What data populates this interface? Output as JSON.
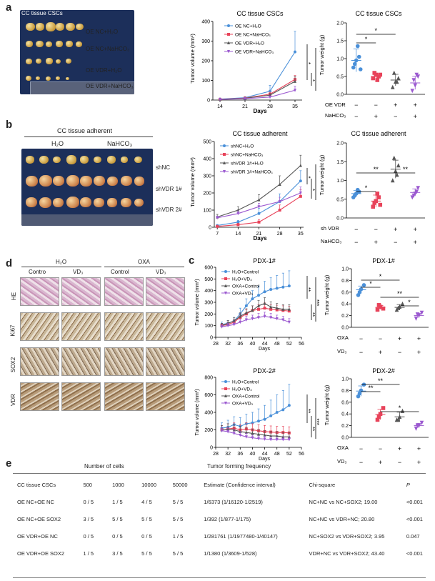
{
  "panel_a": {
    "letter": "a",
    "photo_title": "CC tissue CSCs",
    "groups": [
      "OE NC+H₂O",
      "OE NC+NaHCO₃",
      "OE VDR+H₂O",
      "OE VDR+NaHCO₃"
    ],
    "volume_title": "CC tissue CSCs",
    "volume_ylabel": "Tumor volume (mm³)",
    "volume_xlabel": "Days",
    "volume_yticks": [
      "0",
      "100",
      "200",
      "300",
      "400"
    ],
    "volume_xticks": [
      "14",
      "21",
      "28",
      "35"
    ],
    "weight_title": "CC tissue CSCs",
    "weight_ylabel": "Tumor weight (g)",
    "weight_yticks": [
      "0.0",
      "0.5",
      "1.0",
      "1.5",
      "2.0"
    ],
    "row1_label": "OE VDR",
    "row1_signs": [
      "−",
      "−",
      "+",
      "+"
    ],
    "row2_label": "NaHCO₃",
    "row2_signs": [
      "−",
      "+",
      "−",
      "+"
    ],
    "stars": [
      "*",
      "*",
      "*",
      "*",
      "*",
      "*",
      "*"
    ]
  },
  "panel_b": {
    "letter": "b",
    "photo_title": "CC tissue adherent",
    "col1": "H₂O",
    "col2": "NaHCO₃",
    "rows": [
      "shNC",
      "shVDR 1#",
      "shVDR 2#"
    ],
    "groups": [
      "shNC+H₂O",
      "shNC+NaHCO₃",
      "shVDR 1#+H₂O",
      "shVDR 1#+NaHCO₃"
    ],
    "volume_title": "CC tissue adherent",
    "volume_ylabel": "Tumor volume (mm³)",
    "volume_xlabel": "Days",
    "volume_yticks": [
      "0",
      "100",
      "200",
      "300",
      "400",
      "500"
    ],
    "volume_xticks": [
      "7",
      "14",
      "21",
      "28",
      "35"
    ],
    "weight_title": "CC tissue adherent",
    "weight_ylabel": "Tumor weight (g)",
    "weight_yticks": [
      "0.0",
      "0.5",
      "1.0",
      "1.5",
      "2.0"
    ],
    "row1_label": "sh VDR",
    "row1_signs": [
      "−",
      "−",
      "+",
      "+"
    ],
    "row2_label": "NaHCO₃",
    "row2_signs": [
      "−",
      "+",
      "−",
      "+"
    ],
    "stars": [
      "*",
      "**",
      "**",
      "*",
      "*",
      "***"
    ]
  },
  "panel_d": {
    "letter": "d",
    "group1": "H₂O",
    "group2": "OXA",
    "cols": [
      "Contro",
      "VD₃",
      "Control",
      "VD₃"
    ],
    "rows": [
      "HE",
      "Ki67",
      "SOX2",
      "VDR"
    ]
  },
  "panel_c": {
    "letter": "c",
    "pdx1_title": "PDX-1#",
    "pdx2_title": "PDX-2#",
    "groups": [
      "H₂O+Control",
      "H₂O+VD₃",
      "OXA+Control",
      "OXA+VD₃"
    ],
    "volume_ylabel": "Tumor volume (mm³)",
    "volume_xlabel": "Days",
    "pdx1_yticks": [
      "0",
      "100",
      "200",
      "300",
      "400",
      "500",
      "600"
    ],
    "pdx2_yticks": [
      "0",
      "200",
      "400",
      "600",
      "800"
    ],
    "xticks": [
      "28",
      "32",
      "36",
      "40",
      "44",
      "48",
      "52",
      "56"
    ],
    "weight_ylabel": "Tumor weight (g)",
    "pdx1_wyticks": [
      "0.0",
      "0.2",
      "0.4",
      "0.6",
      "0.8",
      "1.0"
    ],
    "pdx2_wyticks": [
      "0.0",
      "0.2",
      "0.4",
      "0.6",
      "0.8",
      "1.0"
    ],
    "row1_label": "OXA",
    "row1_signs": [
      "−",
      "−",
      "+",
      "+"
    ],
    "row2_label": "VD₃",
    "row2_signs": [
      "−",
      "+",
      "−",
      "+"
    ],
    "pdx1_stars": [
      "*",
      "*",
      "**",
      "*"
    ],
    "pdx2_stars": [
      "**",
      "**",
      "*"
    ],
    "vol_stars": [
      "**",
      "**",
      "***",
      "**",
      "**",
      "***"
    ]
  },
  "panel_e": {
    "letter": "e",
    "header1": "Number of cells",
    "header2": "Tumor forming frequency",
    "columns": [
      "CC tissue CSCs",
      "500",
      "1000",
      "10000",
      "50000",
      "Estimate (Confidence interval)",
      "Chi-square",
      "P"
    ],
    "rows": [
      [
        "OE NC+OE NC",
        "0 / 5",
        "1 / 5",
        "4 / 5",
        "5 / 5",
        "1/6373 (1/16120-1/2519)",
        "NC+NC vs NC+SOX2; 19.00",
        "<0.001"
      ],
      [
        "OE NC+OE SOX2",
        "3 / 5",
        "5 / 5",
        "5 / 5",
        "5 / 5",
        "1/392 (1/877-1/175)",
        "NC+NC vs VDR+NC; 20.80",
        "<0.001"
      ],
      [
        "OE VDR+OE NC",
        "0 / 5",
        "0 / 5",
        "0 / 5",
        "1 / 5",
        "1/281761 (1/1977480-1/40147)",
        "NC+SOX2 vs VDR+SOX2; 3.95",
        "0.047"
      ],
      [
        "OE VDR+OE SOX2",
        "1 / 5",
        "3 / 5",
        "5 / 5",
        "5 / 5",
        "1/1380 (1/3609-1/528)",
        "VDR+NC vs VDR+SOX2; 43.40",
        "<0.001"
      ]
    ]
  },
  "colors": {
    "blue": "#4a90d9",
    "red": "#e8435a",
    "gray": "#555555",
    "purple": "#9b59d0"
  },
  "chart_data": [
    {
      "type": "line",
      "title": "CC tissue CSCs",
      "xlabel": "Days",
      "ylabel": "Tumor volume (mm³)",
      "x": [
        14,
        21,
        28,
        35
      ],
      "ylim": [
        0,
        400
      ],
      "series": [
        {
          "name": "OE NC+H₂O",
          "values": [
            5,
            12,
            45,
            245
          ],
          "err": [
            0,
            0,
            30,
            105
          ]
        },
        {
          "name": "OE NC+NaHCO₃",
          "values": [
            4,
            10,
            30,
            105
          ],
          "err": [
            0,
            0,
            10,
            20
          ]
        },
        {
          "name": "OE VDR+H₂O",
          "values": [
            4,
            9,
            25,
            95
          ],
          "err": [
            0,
            0,
            8,
            25
          ]
        },
        {
          "name": "OE VDR+NaHCO₃",
          "values": [
            3,
            7,
            15,
            50
          ],
          "err": [
            0,
            0,
            5,
            20
          ]
        }
      ]
    },
    {
      "type": "scatter",
      "title": "CC tissue CSCs",
      "ylabel": "Tumor weight (g)",
      "ylim": [
        0,
        2.0
      ],
      "categories": [
        "1",
        "2",
        "3",
        "4"
      ],
      "points": [
        [
          0.75,
          0.95,
          1.05,
          0.85,
          1.35,
          0.7
        ],
        [
          0.45,
          0.55,
          0.5,
          0.6,
          0.4,
          0.55
        ],
        [
          0.2,
          0.35,
          0.45,
          0.6,
          0.35
        ],
        [
          0.1,
          0.25,
          0.5,
          0.4,
          0.55
        ]
      ],
      "means": [
        0.95,
        0.5,
        0.4,
        0.32
      ]
    },
    {
      "type": "line",
      "title": "CC tissue adherent",
      "xlabel": "Days",
      "ylabel": "Tumor volume (mm³)",
      "x": [
        7,
        14,
        21,
        28,
        35
      ],
      "ylim": [
        0,
        500
      ],
      "series": [
        {
          "name": "shNC+H₂O",
          "values": [
            10,
            30,
            80,
            150,
            270
          ],
          "err": [
            5,
            10,
            30,
            45,
            60
          ]
        },
        {
          "name": "shNC+NaHCO₃",
          "values": [
            5,
            15,
            30,
            100,
            180
          ],
          "err": [
            5,
            8,
            15,
            30,
            40
          ]
        },
        {
          "name": "shVDR 1#+H₂O",
          "values": [
            60,
            100,
            160,
            250,
            360
          ],
          "err": [
            15,
            20,
            30,
            50,
            60
          ]
        },
        {
          "name": "shVDR 1#+NaHCO₃",
          "values": [
            55,
            80,
            120,
            150,
            200
          ],
          "err": [
            10,
            15,
            20,
            25,
            35
          ]
        }
      ]
    },
    {
      "type": "scatter",
      "title": "CC tissue adherent",
      "ylabel": "Tumor weight (g)",
      "ylim": [
        0,
        2.0
      ],
      "categories": [
        "1",
        "2",
        "3",
        "4"
      ],
      "points": [
        [
          0.55,
          0.65,
          0.7,
          0.6,
          0.75
        ],
        [
          0.3,
          0.45,
          0.55,
          0.4,
          0.65,
          0.35
        ],
        [
          1.0,
          1.25,
          1.4,
          1.6,
          1.15
        ],
        [
          0.55,
          0.65,
          0.8,
          0.6,
          0.7
        ]
      ],
      "means": [
        0.65,
        0.45,
        1.3,
        0.68
      ]
    },
    {
      "type": "line",
      "title": "PDX-1#",
      "xlabel": "Days",
      "ylabel": "Tumor volume (mm³)",
      "x": [
        30,
        32,
        34,
        36,
        38,
        40,
        42,
        44,
        46,
        48,
        50,
        52
      ],
      "ylim": [
        0,
        600
      ],
      "series": [
        {
          "name": "H₂O+Control",
          "values": [
            110,
            120,
            140,
            200,
            270,
            330,
            360,
            390,
            410,
            420,
            430,
            440
          ],
          "err": [
            20,
            25,
            30,
            50,
            60,
            70,
            80,
            90,
            100,
            110,
            120,
            130
          ]
        },
        {
          "name": "H₂O+VD₃",
          "values": [
            100,
            110,
            130,
            170,
            200,
            230,
            240,
            250,
            240,
            235,
            230,
            225
          ],
          "err": [
            15,
            20,
            25,
            30,
            35,
            40,
            40,
            45,
            40,
            40,
            40,
            40
          ]
        },
        {
          "name": "OXA+Control",
          "values": [
            100,
            120,
            140,
            180,
            210,
            230,
            270,
            290,
            260,
            250,
            240,
            240
          ],
          "err": [
            20,
            25,
            30,
            30,
            35,
            40,
            45,
            50,
            45,
            40,
            40,
            40
          ]
        },
        {
          "name": "OXA+VD₃",
          "values": [
            90,
            100,
            110,
            130,
            150,
            160,
            170,
            180,
            170,
            160,
            150,
            130
          ],
          "err": [
            15,
            20,
            20,
            25,
            30,
            30,
            35,
            35,
            35,
            30,
            30,
            30
          ]
        }
      ]
    },
    {
      "type": "scatter",
      "title": "PDX-1#",
      "ylabel": "Tumor weight (g)",
      "ylim": [
        0,
        1.0
      ],
      "categories": [
        "1",
        "2",
        "3",
        "4"
      ],
      "points": [
        [
          0.55,
          0.65,
          0.72,
          0.6
        ],
        [
          0.3,
          0.35,
          0.32,
          0.38
        ],
        [
          0.3,
          0.35,
          0.4,
          0.33
        ],
        [
          0.15,
          0.2,
          0.25,
          0.22
        ]
      ],
      "means": [
        0.64,
        0.34,
        0.34,
        0.2
      ]
    },
    {
      "type": "line",
      "title": "PDX-2#",
      "xlabel": "Days",
      "ylabel": "Tumor volume (mm³)",
      "x": [
        30,
        32,
        34,
        36,
        38,
        40,
        42,
        44,
        46,
        48,
        50,
        52
      ],
      "ylim": [
        0,
        800
      ],
      "series": [
        {
          "name": "H₂O+Control",
          "values": [
            220,
            230,
            260,
            240,
            270,
            280,
            300,
            320,
            360,
            400,
            430,
            480
          ],
          "err": [
            60,
            80,
            90,
            100,
            110,
            120,
            140,
            160,
            180,
            200,
            220,
            240
          ]
        },
        {
          "name": "H₂O+VD₃",
          "values": [
            200,
            210,
            220,
            200,
            210,
            200,
            190,
            180,
            175,
            170,
            170,
            165
          ],
          "err": [
            50,
            60,
            60,
            60,
            70,
            70,
            70,
            70,
            70,
            70,
            70,
            70
          ]
        },
        {
          "name": "OXA+Control",
          "values": [
            200,
            210,
            200,
            180,
            170,
            160,
            150,
            140,
            130,
            130,
            120,
            120
          ],
          "err": [
            50,
            60,
            60,
            60,
            60,
            50,
            50,
            50,
            50,
            50,
            50,
            50
          ]
        },
        {
          "name": "OXA+VD₃",
          "values": [
            190,
            180,
            160,
            140,
            120,
            110,
            100,
            95,
            90,
            90,
            90,
            90
          ],
          "err": [
            40,
            40,
            40,
            40,
            40,
            30,
            30,
            30,
            30,
            30,
            30,
            30
          ]
        }
      ]
    },
    {
      "type": "scatter",
      "title": "PDX-2#",
      "ylabel": "Tumor weight (g)",
      "ylim": [
        0,
        1.0
      ],
      "categories": [
        "1",
        "2",
        "3",
        "4"
      ],
      "points": [
        [
          0.7,
          0.8,
          0.9,
          0.75
        ],
        [
          0.3,
          0.4,
          0.5,
          0.35
        ],
        [
          0.3,
          0.35,
          0.45,
          0.3
        ],
        [
          0.15,
          0.2,
          0.25,
          0.2
        ]
      ],
      "means": [
        0.79,
        0.39,
        0.35,
        0.2
      ]
    }
  ]
}
